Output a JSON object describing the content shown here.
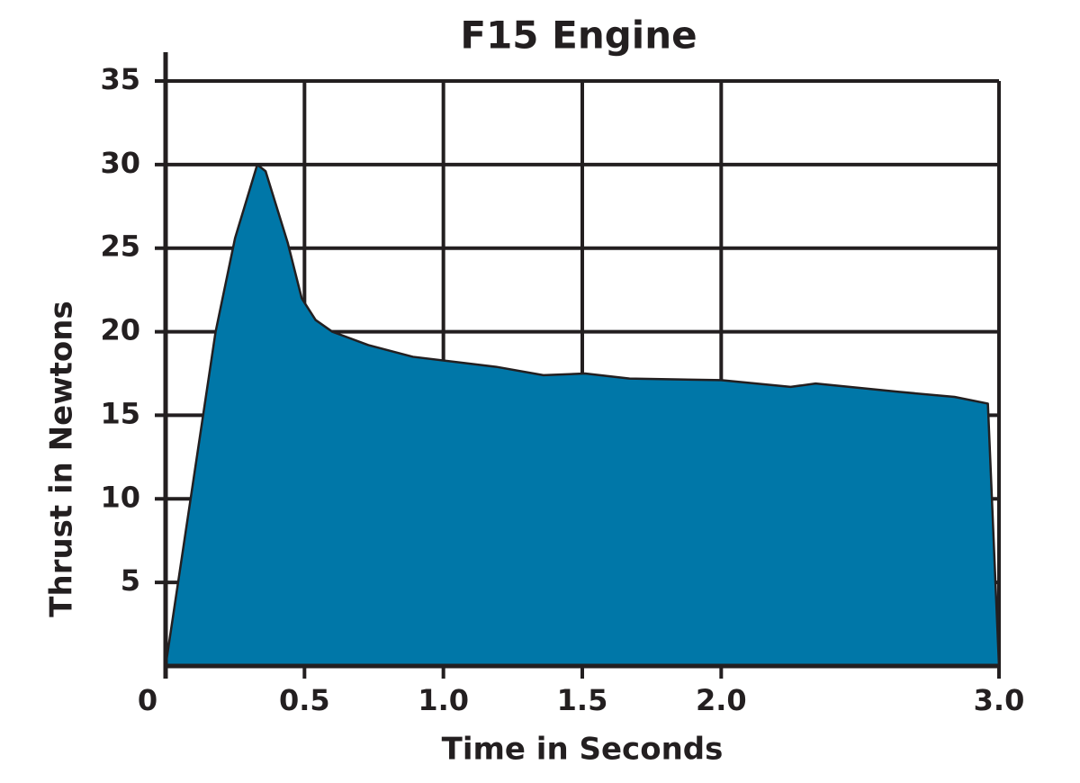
{
  "chart_data": {
    "type": "area",
    "title": "F15 Engine",
    "x_label": "Time in Seconds",
    "y_label": "Thrust in Newtons",
    "x": [
      0,
      0.18,
      0.25,
      0.33,
      0.36,
      0.44,
      0.49,
      0.54,
      0.6,
      0.73,
      0.89,
      1.19,
      1.36,
      1.51,
      1.67,
      2.0,
      2.25,
      2.34,
      2.64,
      2.84,
      2.96,
      3.0
    ],
    "values": [
      0,
      20,
      25.6,
      30,
      29.6,
      25.3,
      22,
      20.7,
      20,
      19.2,
      18.5,
      17.9,
      17.4,
      17.5,
      17.2,
      17.1,
      16.7,
      16.9,
      16.4,
      16.1,
      15.7,
      0
    ],
    "color": "#0077a8",
    "xlim": [
      0,
      3
    ],
    "xticks": [
      0,
      0.5,
      {
        "value": 1,
        "label": "1.0"
      },
      1.5,
      {
        "value": 2,
        "label": "2.0"
      },
      {
        "value": 3,
        "label": "3.0"
      }
    ],
    "ylim": [
      0,
      35
    ],
    "yticks": [
      5,
      10,
      15,
      20,
      25,
      30,
      35
    ],
    "grid": true
  }
}
